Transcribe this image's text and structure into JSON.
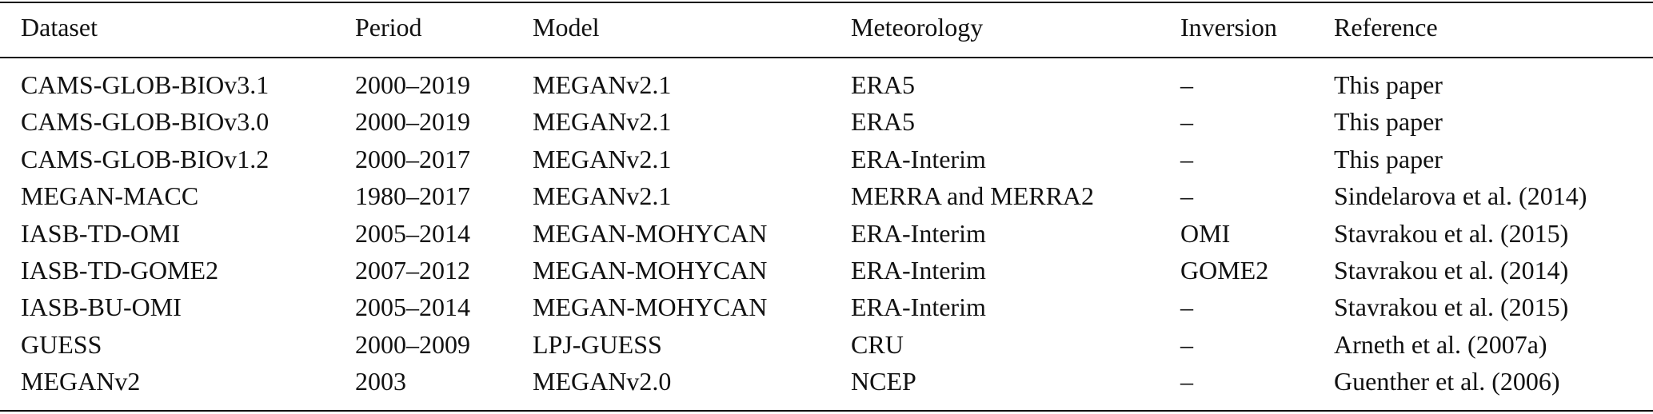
{
  "table": {
    "header": [
      "Dataset",
      "Period",
      "Model",
      "Meteorology",
      "Inversion",
      "Reference"
    ],
    "rows": [
      [
        "CAMS-GLOB-BIOv3.1",
        "2000–2019",
        "MEGANv2.1",
        "ERA5",
        "–",
        "This paper"
      ],
      [
        "CAMS-GLOB-BIOv3.0",
        "2000–2019",
        "MEGANv2.1",
        "ERA5",
        "–",
        "This paper"
      ],
      [
        "CAMS-GLOB-BIOv1.2",
        "2000–2017",
        "MEGANv2.1",
        "ERA-Interim",
        "–",
        "This paper"
      ],
      [
        "MEGAN-MACC",
        "1980–2017",
        "MEGANv2.1",
        "MERRA and MERRA2",
        "–",
        "Sindelarova et al. (2014)"
      ],
      [
        "IASB-TD-OMI",
        "2005–2014",
        "MEGAN-MOHYCAN",
        "ERA-Interim",
        "OMI",
        "Stavrakou et al. (2015)"
      ],
      [
        "IASB-TD-GOME2",
        "2007–2012",
        "MEGAN-MOHYCAN",
        "ERA-Interim",
        "GOME2",
        "Stavrakou et al. (2014)"
      ],
      [
        "IASB-BU-OMI",
        "2005–2014",
        "MEGAN-MOHYCAN",
        "ERA-Interim",
        "–",
        "Stavrakou et al. (2015)"
      ],
      [
        "GUESS",
        "2000–2009",
        "LPJ-GUESS",
        "CRU",
        "–",
        "Arneth et al. (2007a)"
      ],
      [
        "MEGANv2",
        "2003",
        "MEGANv2.0",
        "NCEP",
        "–",
        "Guenther et al. (2006)"
      ]
    ]
  }
}
